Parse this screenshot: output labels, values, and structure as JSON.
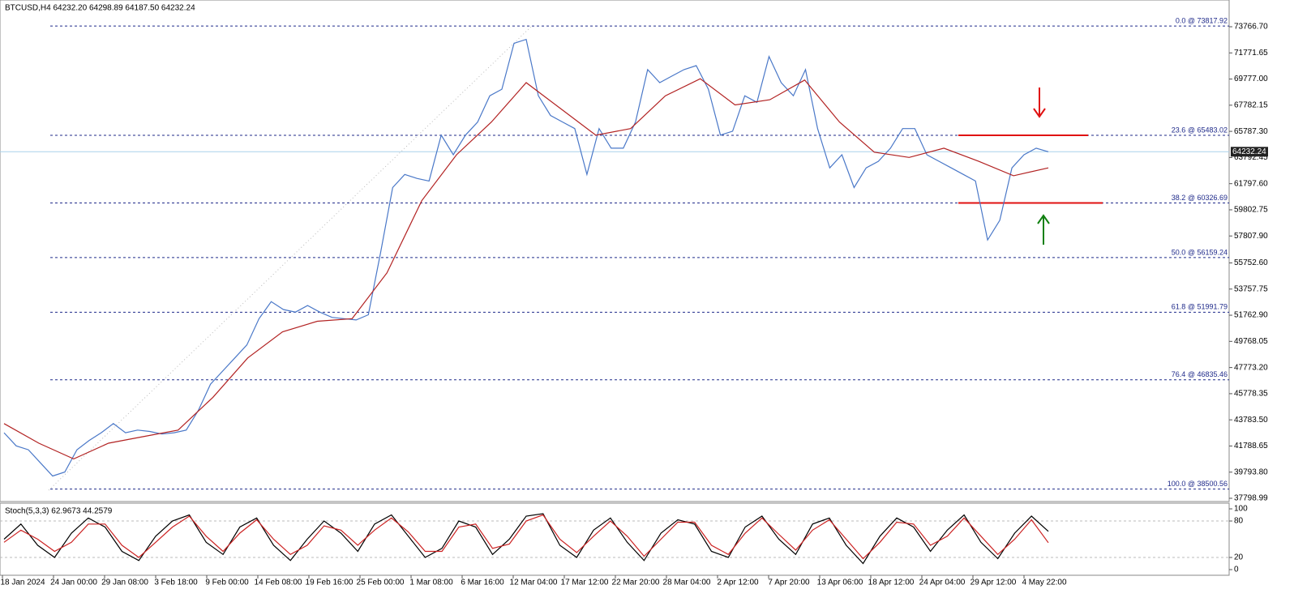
{
  "chart_data": [
    {
      "type": "line",
      "title": "BTCUSD,H4  64232.20 64298.89 64187.50 64232.24",
      "series": [
        {
          "color": "#4a78c8",
          "values": [
            42800,
            41800,
            41500,
            40500,
            39500,
            39800,
            41500,
            42200,
            42800,
            43500,
            42800,
            43000,
            42900,
            42700,
            42800,
            43000,
            44500,
            46500,
            47500,
            48500,
            49500,
            51500,
            52800,
            52200,
            52000,
            52500,
            52000,
            51600,
            51500,
            51400,
            51800,
            56500,
            61500,
            62500,
            62200,
            62000,
            65500,
            64000,
            65500,
            66500,
            68500,
            69000,
            72500,
            72800,
            68500,
            67000,
            66500,
            66000,
            62500,
            66000,
            64500,
            64500,
            66500,
            70500,
            69500,
            70000,
            70500,
            70800,
            69000,
            65500,
            65800,
            68500,
            68000,
            71500,
            69500,
            68500,
            70500,
            66000,
            63000,
            64000,
            61500,
            63000,
            63500,
            64500,
            66000,
            66000,
            64000,
            63500,
            63000,
            62500,
            62000,
            57500,
            59000,
            63000,
            64000,
            64500,
            64232
          ]
        },
        {
          "color": "#b22222",
          "values": [
            43500,
            42000,
            40800,
            42000,
            42500,
            43000,
            45500,
            48500,
            50500,
            51300,
            51500,
            55000,
            60500,
            64000,
            66500,
            69500,
            67500,
            65500,
            66000,
            68500,
            69800,
            67800,
            68200,
            69700,
            66500,
            64200,
            63800,
            64500,
            63500,
            62400,
            63000
          ]
        }
      ],
      "ylim": [
        37614,
        75806
      ],
      "yticks": [
        {
          "value": 73766.7,
          "label": "73766.70"
        },
        {
          "value": 71771.65,
          "label": "71771.65"
        },
        {
          "value": 69777,
          "label": "69777.00"
        },
        {
          "value": 67782.15,
          "label": "67782.15"
        },
        {
          "value": 65787.3,
          "label": "65787.30"
        },
        {
          "value": 63792.45,
          "label": "63792.45"
        },
        {
          "value": 61797.6,
          "label": "61797.60"
        },
        {
          "value": 59802.75,
          "label": "59802.75"
        },
        {
          "value": 57807.9,
          "label": "57807.90"
        },
        {
          "value": 55752.6,
          "label": "55752.60"
        },
        {
          "value": 53757.75,
          "label": "53757.75"
        },
        {
          "value": 51762.9,
          "label": "51762.90"
        },
        {
          "value": 49768.05,
          "label": "49768.05"
        },
        {
          "value": 47773.2,
          "label": "47773.20"
        },
        {
          "value": 45778.35,
          "label": "45778.35"
        },
        {
          "value": 43783.5,
          "label": "43783.50"
        },
        {
          "value": 41788.65,
          "label": "41788.65"
        },
        {
          "value": 39793.8,
          "label": "39793.80"
        },
        {
          "value": 37798.99,
          "label": "37798.99"
        }
      ],
      "fib_levels": [
        {
          "label": "0.0 @ 73817.92",
          "value": 73817.92
        },
        {
          "label": "23.6 @ 65483.02",
          "value": 65483.02
        },
        {
          "label": "38.2 @ 60326.69",
          "value": 60326.69
        },
        {
          "label": "50.0 @ 56159.24",
          "value": 56159.24
        },
        {
          "label": "61.8 @ 51991.79",
          "value": 51991.79
        },
        {
          "label": "76.4 @ 46835.46",
          "value": 46835.46
        },
        {
          "label": "100.0 @ 38500.56",
          "value": 38500.56
        }
      ],
      "current_price": {
        "value": 64232.24,
        "label": "64232.24"
      }
    },
    {
      "type": "line",
      "title": "Stoch(5,3,3) 62.9673 44.2579",
      "series": [
        {
          "color": "#000000",
          "values": [
            50,
            75,
            40,
            20,
            60,
            85,
            70,
            30,
            15,
            55,
            80,
            90,
            45,
            25,
            70,
            85,
            40,
            15,
            50,
            80,
            60,
            30,
            75,
            90,
            55,
            20,
            35,
            80,
            70,
            25,
            50,
            88,
            92,
            40,
            20,
            65,
            85,
            45,
            15,
            60,
            82,
            75,
            30,
            20,
            70,
            88,
            50,
            25,
            75,
            85,
            40,
            10,
            55,
            85,
            70,
            30,
            65,
            90,
            45,
            18,
            60,
            88,
            62.97
          ]
        },
        {
          "color": "#cc2222",
          "values": [
            45,
            65,
            50,
            30,
            45,
            75,
            75,
            40,
            20,
            45,
            70,
            88,
            55,
            30,
            60,
            82,
            50,
            25,
            40,
            72,
            65,
            40,
            65,
            85,
            62,
            30,
            30,
            70,
            75,
            35,
            42,
            80,
            90,
            50,
            28,
            55,
            80,
            55,
            22,
            50,
            78,
            78,
            40,
            25,
            60,
            85,
            58,
            32,
            65,
            82,
            50,
            18,
            45,
            78,
            75,
            40,
            55,
            85,
            55,
            25,
            50,
            82,
            44.26
          ]
        }
      ],
      "ylim": [
        -9.3,
        110.7
      ],
      "yticks": [
        0,
        20,
        80,
        100
      ]
    }
  ],
  "time_axis": {
    "labels": [
      "18 Jan 2024",
      "24 Jan 00:00",
      "29 Jan 08:00",
      "3 Feb 18:00",
      "9 Feb 00:00",
      "14 Feb 08:00",
      "19 Feb 16:00",
      "25 Feb 00:00",
      "1 Mar 08:00",
      "6 Mar 16:00",
      "12 Mar 04:00",
      "17 Mar 12:00",
      "22 Mar 20:00",
      "28 Mar 04:00",
      "2 Apr 12:00",
      "7 Apr 20:00",
      "13 Apr 06:00",
      "18 Apr 12:00",
      "24 Apr 04:00",
      "29 Apr 12:00",
      "4 May 22:00"
    ]
  }
}
